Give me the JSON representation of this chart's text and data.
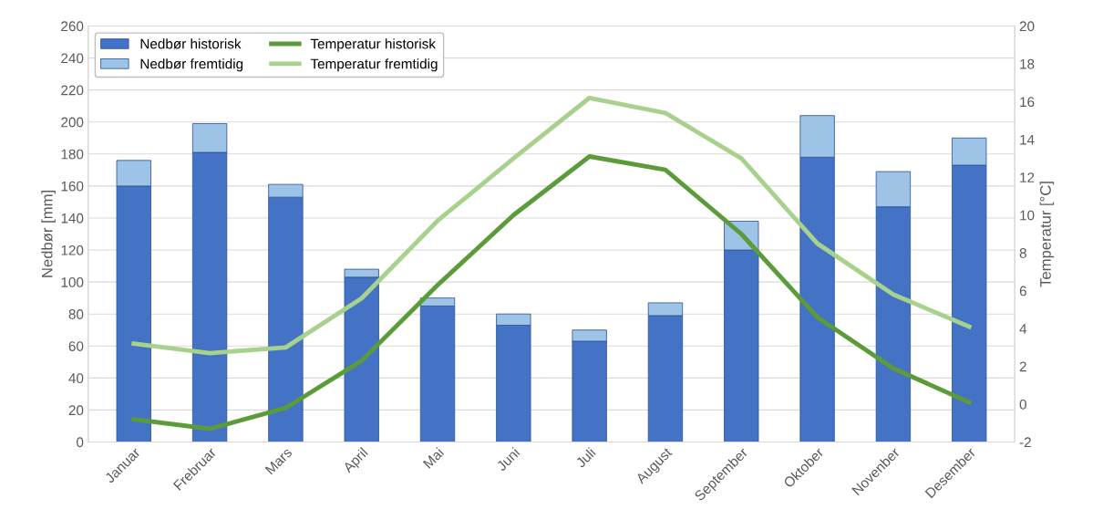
{
  "chart_data": {
    "type": "bar",
    "stacked": true,
    "ylabel": "Nedbør [mm]",
    "y2label": "Temperatur [°C]",
    "categories": [
      "Januar",
      "Frebruar",
      "Mars",
      "April",
      "Mai",
      "Juni",
      "Juli",
      "August",
      "September",
      "Oktober",
      "Novenber",
      "Desember"
    ],
    "series": [
      {
        "name": "Nedbør historisk",
        "color": "#4472c4",
        "values": [
          160,
          181,
          153,
          103,
          85,
          73,
          63,
          79,
          120,
          178,
          147,
          173
        ]
      },
      {
        "name": "Nedbør fremtidig",
        "color": "#9dc3e6",
        "values": [
          16,
          18,
          8,
          5,
          5,
          7,
          7,
          8,
          18,
          26,
          22,
          17
        ]
      },
      {
        "name": "Temperatur historisk",
        "type": "line",
        "axis": "y2",
        "color": "#5b9b3a",
        "values": [
          -0.8,
          -1.3,
          -0.2,
          2.3,
          6.3,
          10.0,
          13.1,
          12.4,
          9.0,
          4.6,
          1.9,
          0.1
        ]
      },
      {
        "name": "Temperatur fremtidig",
        "type": "line",
        "axis": "y2",
        "color": "#a9d18e",
        "values": [
          3.2,
          2.7,
          3.0,
          5.6,
          9.7,
          13.0,
          16.2,
          15.4,
          13.0,
          8.5,
          5.8,
          4.1
        ]
      }
    ],
    "ylim": [
      0,
      260
    ],
    "yticks": [
      0,
      20,
      40,
      60,
      80,
      100,
      120,
      140,
      160,
      180,
      200,
      220,
      240,
      260
    ],
    "y2lim": [
      -2,
      20
    ],
    "y2ticks": [
      -2,
      0,
      2,
      4,
      6,
      8,
      10,
      12,
      14,
      16,
      18,
      20
    ],
    "grid": "y",
    "legend": "top left",
    "marker": "none",
    "line_style": "solid"
  }
}
